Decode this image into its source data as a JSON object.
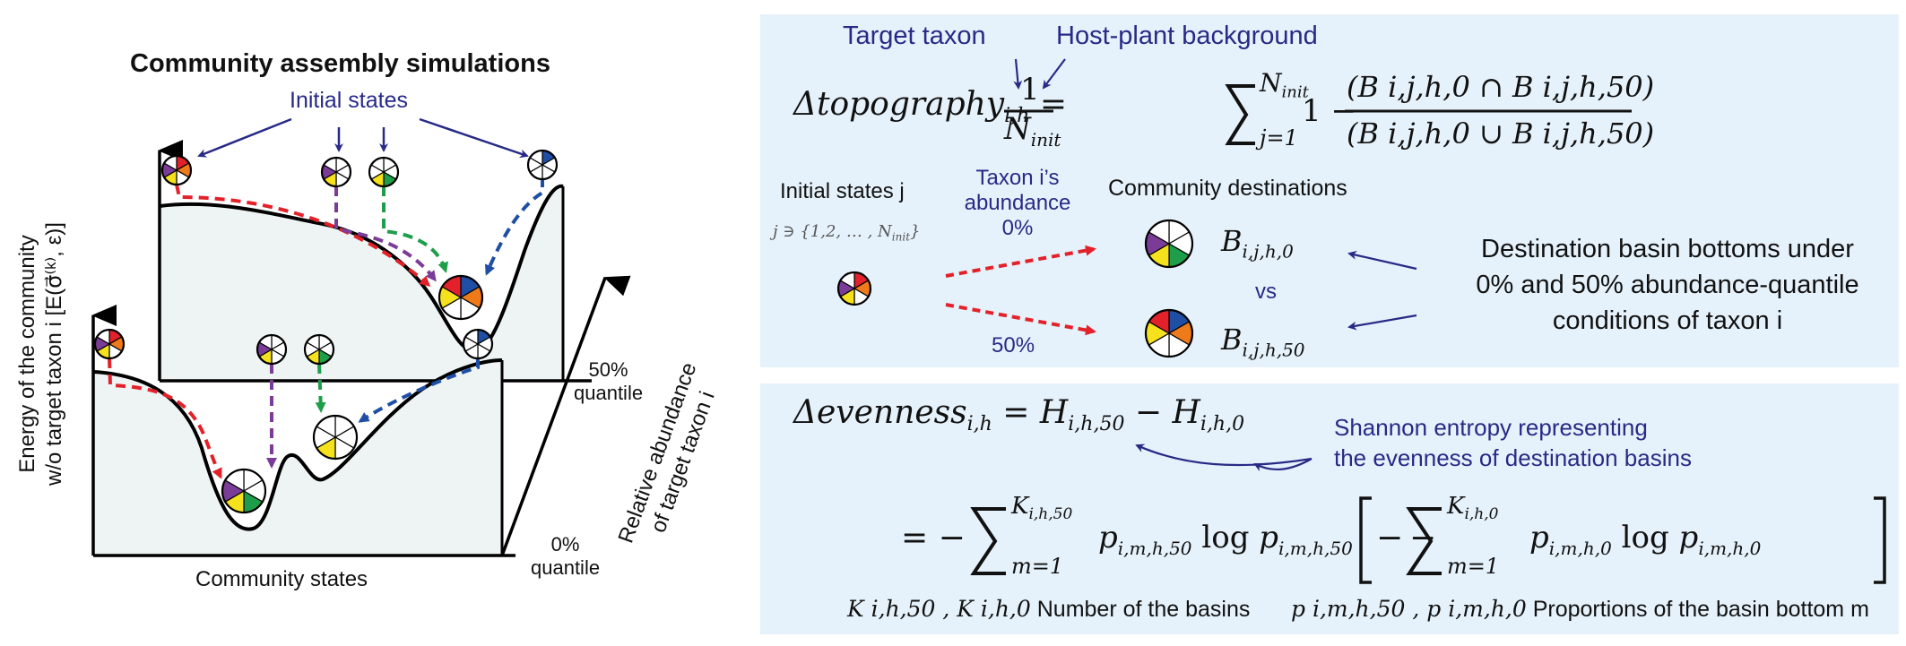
{
  "left": {
    "title": "Community assembly simulations",
    "initial_states": "Initial states",
    "y_axis": "Energy of the community",
    "y_axis2": "w/o target taxon i [E(σ⃗⁽ᵏ⁾, ε)]",
    "x_axis": "Community states",
    "z_axis_line1": "Relative abundance",
    "z_axis_line2": "of target taxon i",
    "q50": "50%",
    "q50b": "quantile",
    "q0": "0%",
    "q0b": "quantile"
  },
  "topography": {
    "target_taxon": "Target taxon",
    "host_plant": "Host-plant background",
    "lhs": "Δtopography",
    "lhs_sub": "i,h",
    "frac_num": "1",
    "frac_den": "N",
    "frac_den_sub": "init",
    "sum_top": "N",
    "sum_top_sub": "init",
    "sum_bottom": "j=1",
    "one_minus": "1 −",
    "num": "(B i,j,h,0 ∩ B i,j,h,50)",
    "den": "(B i,j,h,0 ∪ B i,j,h,50)",
    "initial_states_j": "Initial states j",
    "j_set": "j ∋ {1,2, … , N",
    "j_set_sub": "init",
    "taxon_abundance_1": "Taxon i’s",
    "taxon_abundance_2": "abundance",
    "pct0": "0%",
    "pct50": "50%",
    "community_destinations": "Community destinations",
    "b0": "B",
    "b0_sub": "i,j,h,0",
    "vs": "vs",
    "b50": "B",
    "b50_sub": "i,j,h,50",
    "desc_1": "Destination basin bottoms under",
    "desc_2": "0% and 50% abundance-quantile",
    "desc_3": "conditions of taxon i"
  },
  "evenness": {
    "lhs": "Δevenness",
    "lhs_sub": "i,h",
    "rhs": "= H",
    "rhs_sub1": "i,h,50",
    "minus": "− H",
    "rhs_sub2": "i,h,0",
    "shannon_1": "Shannon entropy representing",
    "shannon_2": "the evenness of destination basins",
    "line2_eq": "= −",
    "sum1_top": "K",
    "sum1_top_sub": "i,h,50",
    "sum_bottom": "m=1",
    "term1": "p",
    "term1_sub": "i,m,h,50",
    "log": "log",
    "term1b_sub": "i,m,h,50",
    "minus_bracket": "− [−",
    "sum2_top": "K",
    "sum2_top_sub": "i,h,0",
    "term2_sub": "i,m,h,0",
    "close_bracket": "]",
    "k_def_vars": "K i,h,50 , K i,h,0",
    "k_def_text": "Number of the basins",
    "p_def_vars": "p i,m,h,50 , p i,m,h,0",
    "p_def_text": "Proportions of the basin bottom m"
  },
  "colors": {
    "panel": "#e6f2fb",
    "navy": "#272a86",
    "red": "#e3212a",
    "purple": "#7b3c98",
    "green": "#1e9e4a",
    "blue": "#1f4fa5",
    "yellow": "#f5e11c",
    "orange": "#ef7a1a",
    "landscape_fill": "#eef3f3"
  }
}
